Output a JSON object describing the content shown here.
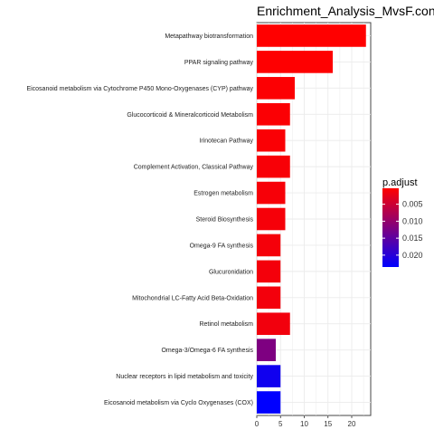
{
  "chart_data": {
    "type": "bar",
    "orientation": "horizontal",
    "title": "Enrichment_Analysis_MvsF.con_l",
    "xlabel": "",
    "ylabel": "",
    "xlim": [
      0,
      24
    ],
    "x_ticks": [
      0,
      5,
      10,
      15,
      20
    ],
    "grid": true,
    "legend": {
      "title": "p.adjust",
      "placement": "right",
      "ticks": [
        "0.005",
        "0.010",
        "0.015",
        "0.020"
      ],
      "tick_values": [
        0.005,
        0.01,
        0.015,
        0.02
      ],
      "range": [
        0.0003,
        0.0235
      ],
      "low_color": "#ff0000",
      "high_color": "#0000ff"
    },
    "categories": [
      "Metapathway biotransformation",
      "PPAR signaling pathway",
      "Eicosanoid metabolism via Cytochrome P450 Mono-Oxygenases (CYP) pathway",
      "Glucocorticoid & Mineralcorticoid Metabolism",
      "Irinotecan Pathway",
      "Complement Activation, Classical Pathway",
      "Estrogen metabolism",
      "Steroid Biosynthesis",
      "Omega-9 FA synthesis",
      "Glucuronidation",
      "Mitochondrial LC-Fatty Acid Beta-Oxidation",
      "Retinol metabolism",
      "Omega-3/Omega-6 FA synthesis",
      "Nuclear receptors in lipid metabolism and toxicity",
      "Eicosanoid metabolism via Cyclo Oxygenases (COX)"
    ],
    "values": [
      23,
      16,
      8,
      7,
      6,
      7,
      6,
      6,
      5,
      5,
      5,
      7,
      4,
      5,
      5
    ],
    "p_adjust": [
      0.0003,
      0.0004,
      0.0006,
      0.0007,
      0.0008,
      0.0009,
      0.001,
      0.0011,
      0.0012,
      0.0013,
      0.0014,
      0.0015,
      0.012,
      0.022,
      0.0235
    ]
  }
}
